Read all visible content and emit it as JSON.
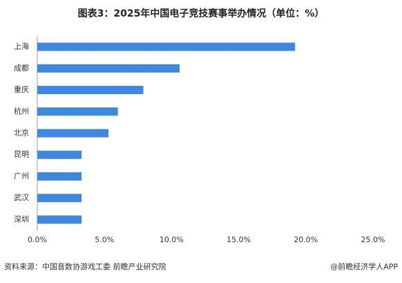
{
  "chart_data": {
    "type": "hbar",
    "title": "图表3：2025年中国电子竞技赛事举办情况（单位：%）",
    "categories": [
      "上海",
      "成都",
      "重庆",
      "杭州",
      "北京",
      "昆明",
      "广州",
      "武汉",
      "深圳"
    ],
    "values": [
      19.2,
      10.6,
      7.9,
      6.0,
      5.3,
      3.3,
      3.3,
      3.3,
      3.3
    ],
    "color": "#3f88e0",
    "xlim": [
      0,
      25
    ],
    "xticks": [
      {
        "value": 0,
        "label": "0.0%"
      },
      {
        "value": 5,
        "label": "5.0%"
      },
      {
        "value": 10,
        "label": "10.0%"
      },
      {
        "value": 15,
        "label": "15.0%"
      },
      {
        "value": 20,
        "label": "20.0%"
      },
      {
        "value": 25,
        "label": "25.0%"
      }
    ],
    "source": "资料来源：中国音数协游戏工委  前瞻产业研究院",
    "credit": "@前瞻经济学人APP"
  }
}
